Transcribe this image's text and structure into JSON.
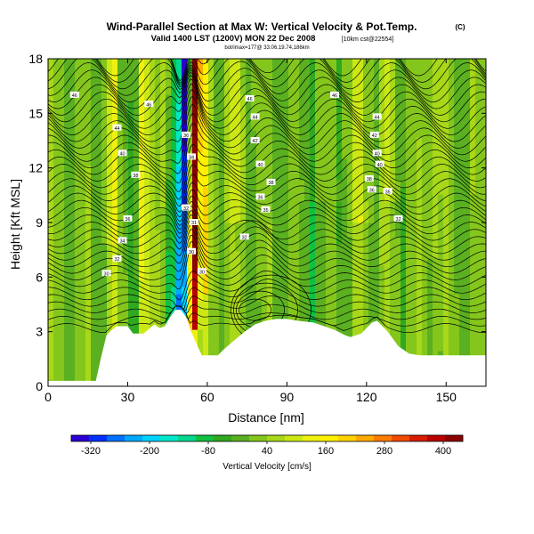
{
  "header": {
    "title": "Wind-Parallel Section at Max W: Vertical Velocity & Pot.Temp.",
    "copyright": "(C)",
    "valid": "Valid 1400 LST (1200V) MON 22 Dec 2008",
    "run": "[10km cst@22554]",
    "sub": "bot/imax=177@ 33.06,19.74,186km"
  },
  "chart_data": {
    "type": "heatmap",
    "title": "Wind-Parallel Section at Max W: Vertical Velocity & Pot.Temp.",
    "xlabel": "Distance [nm]",
    "ylabel": "Height [Kft MSL]",
    "xlim": [
      0,
      165
    ],
    "ylim": [
      0,
      18
    ],
    "xticks": [
      0,
      30,
      60,
      90,
      120,
      150
    ],
    "yticks": [
      0,
      3,
      6,
      9,
      12,
      15,
      18
    ],
    "colorbar": {
      "label": "Vertical Velocity [cm/s]",
      "tick_labels": [
        "-320",
        "-200",
        "-80",
        "40",
        "160",
        "280",
        "400"
      ],
      "tick_values": [
        -320,
        -200,
        -80,
        40,
        160,
        280,
        400
      ],
      "range": [
        -360,
        440
      ],
      "colors": [
        "#2a00d4",
        "#0030ff",
        "#0070ff",
        "#00a8ff",
        "#00d2ff",
        "#00e8c8",
        "#00d890",
        "#10c040",
        "#30a820",
        "#5ab020",
        "#84c61c",
        "#a8d818",
        "#cce814",
        "#eef010",
        "#fff000",
        "#ffd200",
        "#ffaa00",
        "#ff7c00",
        "#f04a00",
        "#d81c00",
        "#b80000",
        "#8c0000"
      ]
    },
    "terrain": {
      "x": [
        0,
        18,
        20,
        22,
        24,
        26,
        28,
        30,
        32,
        36,
        40,
        42,
        44,
        46,
        48,
        50,
        52,
        54,
        56,
        58,
        64,
        66,
        70,
        74,
        78,
        82,
        86,
        90,
        94,
        100,
        104,
        108,
        112,
        114,
        118,
        120,
        122,
        124,
        126,
        128,
        130,
        132,
        134,
        136,
        140,
        150,
        165
      ],
      "height": [
        0.3,
        0.3,
        1.6,
        2.8,
        3.1,
        3.3,
        3.3,
        3.3,
        2.9,
        2.9,
        3.4,
        3.2,
        3.3,
        3.8,
        4.2,
        4.2,
        3.8,
        3.0,
        2.3,
        1.7,
        1.7,
        2.0,
        2.5,
        3.0,
        3.4,
        3.6,
        3.7,
        3.7,
        3.6,
        3.5,
        3.3,
        3.1,
        2.8,
        2.7,
        2.9,
        3.2,
        3.5,
        3.6,
        3.3,
        3.0,
        2.6,
        2.2,
        2.0,
        1.8,
        1.7,
        1.7,
        1.7
      ]
    },
    "isentrope_labels": [
      {
        "x": 10,
        "y": 16.0,
        "label": "46"
      },
      {
        "x": 26,
        "y": 14.2,
        "label": "44"
      },
      {
        "x": 28,
        "y": 12.8,
        "label": "40"
      },
      {
        "x": 33,
        "y": 11.6,
        "label": "38"
      },
      {
        "x": 30,
        "y": 9.2,
        "label": "36"
      },
      {
        "x": 28,
        "y": 8.0,
        "label": "34"
      },
      {
        "x": 26,
        "y": 7.0,
        "label": "32"
      },
      {
        "x": 22,
        "y": 6.2,
        "label": "30"
      },
      {
        "x": 38,
        "y": 15.5,
        "label": "46"
      },
      {
        "x": 52,
        "y": 13.8,
        "label": "36"
      },
      {
        "x": 54,
        "y": 12.6,
        "label": "34"
      },
      {
        "x": 52,
        "y": 9.8,
        "label": "32"
      },
      {
        "x": 55,
        "y": 9.0,
        "label": "31"
      },
      {
        "x": 54,
        "y": 7.4,
        "label": "30"
      },
      {
        "x": 58,
        "y": 6.3,
        "label": "30"
      },
      {
        "x": 76,
        "y": 15.8,
        "label": "46"
      },
      {
        "x": 78,
        "y": 14.8,
        "label": "44"
      },
      {
        "x": 78,
        "y": 13.5,
        "label": "42"
      },
      {
        "x": 80,
        "y": 12.2,
        "label": "40"
      },
      {
        "x": 84,
        "y": 11.2,
        "label": "38"
      },
      {
        "x": 80,
        "y": 10.4,
        "label": "36"
      },
      {
        "x": 82,
        "y": 9.7,
        "label": "35"
      },
      {
        "x": 74,
        "y": 8.2,
        "label": "32"
      },
      {
        "x": 108,
        "y": 16.0,
        "label": "46"
      },
      {
        "x": 124,
        "y": 14.8,
        "label": "44"
      },
      {
        "x": 123,
        "y": 13.8,
        "label": "42"
      },
      {
        "x": 124,
        "y": 12.8,
        "label": "40"
      },
      {
        "x": 125,
        "y": 12.2,
        "label": "40"
      },
      {
        "x": 121,
        "y": 11.4,
        "label": "38"
      },
      {
        "x": 122,
        "y": 10.8,
        "label": "36"
      },
      {
        "x": 128,
        "y": 10.7,
        "label": "35"
      },
      {
        "x": 132,
        "y": 9.2,
        "label": "32"
      }
    ]
  }
}
